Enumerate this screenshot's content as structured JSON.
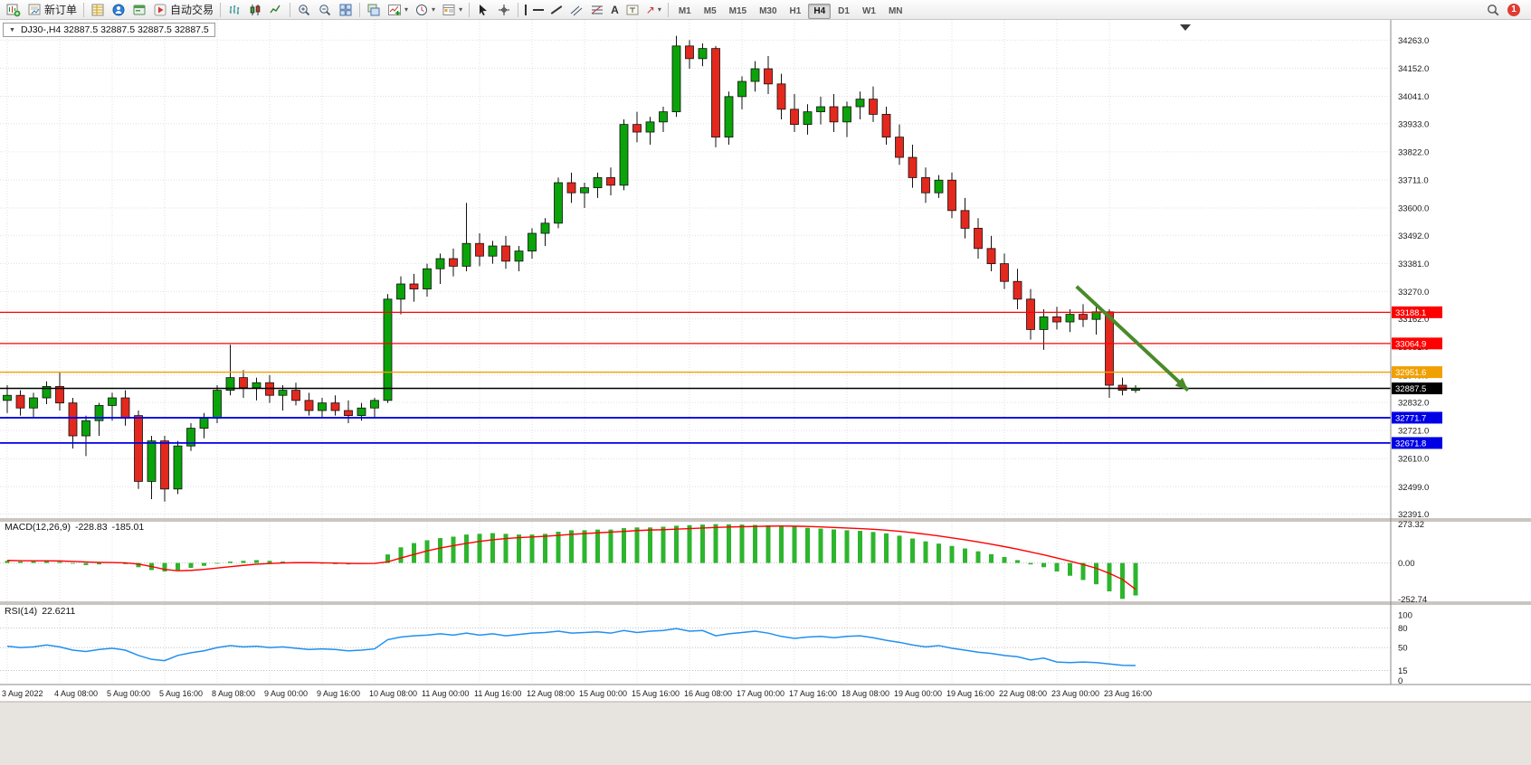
{
  "icons": {
    "caret": "▾",
    "caret_down": "▼",
    "text_tool": "A",
    "arrow_tool": "↗"
  },
  "toolbar": {
    "new_order_label": "新订单",
    "autotrading_label": "自动交易",
    "timeframes": [
      "M1",
      "M5",
      "M15",
      "M30",
      "H1",
      "H4",
      "D1",
      "W1",
      "MN"
    ],
    "active_timeframe": "H4",
    "notification_badge": "1"
  },
  "chart": {
    "symbol_ohlc_label": "DJ30-,H4 32887.5 32887.5 32887.5 32887.5",
    "levels": [
      {
        "price": 33188.1,
        "label": "33188.1",
        "color": "#ff0000"
      },
      {
        "price": 33064.9,
        "label": "33064.9",
        "color": "#ff0000"
      },
      {
        "price": 32951.6,
        "label": "32951.6",
        "color": "#f0a000"
      },
      {
        "price": 32887.5,
        "label": "32887.5",
        "color": "#000000",
        "is_price": true
      },
      {
        "price": 32771.7,
        "label": "32771.7",
        "color": "#0000e6"
      },
      {
        "price": 32671.8,
        "label": "32671.8",
        "color": "#0000e6"
      }
    ],
    "trend_arrow": {
      "color": "#4a8a2a",
      "from": {
        "index": 81.5,
        "price": 33290
      },
      "to": {
        "index": 90,
        "price": 32880
      }
    }
  },
  "macd_panel": {
    "label": "MACD(12,26,9)",
    "value_main": "-228.83",
    "value_signal": "-185.01"
  },
  "rsi_panel": {
    "label": "RSI(14)",
    "value": "22.6211"
  },
  "chart_data": [
    {
      "type": "candlestick",
      "symbol": "DJ30-",
      "timeframe": "H4",
      "up_color": "#0aa30a",
      "down_color": "#e3281e",
      "ylim": [
        32391,
        34263
      ],
      "price_tick_labels": [
        "34263.0",
        "34152.0",
        "34041.0",
        "33933.0",
        "33822.0",
        "33711.0",
        "33600.0",
        "33492.0",
        "33381.0",
        "33270.0",
        "33162.0",
        "33051.0",
        "32940.0",
        "32832.0",
        "32721.0",
        "32610.0",
        "32499.0",
        "32391.0"
      ],
      "time_labels": [
        "3 Aug 2022",
        "4 Aug 08:00",
        "5 Aug 00:00",
        "5 Aug 16:00",
        "8 Aug 08:00",
        "9 Aug 00:00",
        "9 Aug 16:00",
        "10 Aug 08:00",
        "11 Aug 00:00",
        "11 Aug 16:00",
        "12 Aug 08:00",
        "15 Aug 00:00",
        "15 Aug 16:00",
        "16 Aug 08:00",
        "17 Aug 00:00",
        "17 Aug 16:00",
        "18 Aug 08:00",
        "19 Aug 00:00",
        "19 Aug 16:00",
        "22 Aug 08:00",
        "23 Aug 00:00",
        "23 Aug 16:00"
      ],
      "label_every_n_candles": 4,
      "ohlc": [
        [
          32840,
          32900,
          32790,
          32860
        ],
        [
          32860,
          32880,
          32780,
          32810
        ],
        [
          32810,
          32870,
          32770,
          32850
        ],
        [
          32850,
          32915,
          32825,
          32895
        ],
        [
          32895,
          32950,
          32800,
          32830
        ],
        [
          32830,
          32850,
          32650,
          32700
        ],
        [
          32700,
          32780,
          32620,
          32760
        ],
        [
          32760,
          32830,
          32700,
          32820
        ],
        [
          32820,
          32870,
          32760,
          32850
        ],
        [
          32850,
          32880,
          32740,
          32770
        ],
        [
          32780,
          32800,
          32490,
          32520
        ],
        [
          32520,
          32700,
          32450,
          32680
        ],
        [
          32680,
          32700,
          32440,
          32490
        ],
        [
          32490,
          32680,
          32470,
          32660
        ],
        [
          32660,
          32750,
          32640,
          32730
        ],
        [
          32730,
          32790,
          32690,
          32770
        ],
        [
          32770,
          32900,
          32750,
          32880
        ],
        [
          32880,
          33060,
          32860,
          32930
        ],
        [
          32930,
          32960,
          32850,
          32890
        ],
        [
          32890,
          32930,
          32840,
          32910
        ],
        [
          32910,
          32940,
          32830,
          32860
        ],
        [
          32860,
          32900,
          32800,
          32880
        ],
        [
          32880,
          32910,
          32820,
          32840
        ],
        [
          32840,
          32870,
          32780,
          32800
        ],
        [
          32800,
          32850,
          32770,
          32830
        ],
        [
          32830,
          32860,
          32780,
          32800
        ],
        [
          32800,
          32840,
          32750,
          32780
        ],
        [
          32780,
          32830,
          32760,
          32810
        ],
        [
          32810,
          32850,
          32770,
          32840
        ],
        [
          32840,
          33260,
          32830,
          33240
        ],
        [
          33240,
          33330,
          33180,
          33300
        ],
        [
          33300,
          33340,
          33230,
          33280
        ],
        [
          33280,
          33380,
          33250,
          33360
        ],
        [
          33360,
          33420,
          33300,
          33400
        ],
        [
          33400,
          33440,
          33330,
          33370
        ],
        [
          33370,
          33620,
          33350,
          33460
        ],
        [
          33460,
          33500,
          33370,
          33410
        ],
        [
          33410,
          33470,
          33380,
          33450
        ],
        [
          33450,
          33490,
          33360,
          33390
        ],
        [
          33390,
          33450,
          33350,
          33430
        ],
        [
          33430,
          33520,
          33400,
          33500
        ],
        [
          33500,
          33560,
          33450,
          33540
        ],
        [
          33540,
          33720,
          33520,
          33700
        ],
        [
          33700,
          33740,
          33620,
          33660
        ],
        [
          33660,
          33700,
          33600,
          33680
        ],
        [
          33680,
          33740,
          33640,
          33720
        ],
        [
          33720,
          33760,
          33650,
          33690
        ],
        [
          33690,
          33950,
          33670,
          33930
        ],
        [
          33930,
          33980,
          33860,
          33900
        ],
        [
          33900,
          33960,
          33850,
          33940
        ],
        [
          33940,
          34000,
          33900,
          33980
        ],
        [
          33980,
          34280,
          33960,
          34240
        ],
        [
          34240,
          34263,
          34150,
          34190
        ],
        [
          34190,
          34250,
          34160,
          34230
        ],
        [
          34230,
          34240,
          33840,
          33880
        ],
        [
          33880,
          34060,
          33850,
          34040
        ],
        [
          34040,
          34120,
          33990,
          34100
        ],
        [
          34100,
          34180,
          34060,
          34150
        ],
        [
          34150,
          34200,
          34050,
          34090
        ],
        [
          34090,
          34130,
          33950,
          33990
        ],
        [
          33990,
          34050,
          33900,
          33930
        ],
        [
          33930,
          34010,
          33890,
          33980
        ],
        [
          33980,
          34040,
          33930,
          34000
        ],
        [
          34000,
          34050,
          33900,
          33940
        ],
        [
          33940,
          34020,
          33880,
          34000
        ],
        [
          34000,
          34060,
          33950,
          34030
        ],
        [
          34030,
          34080,
          33940,
          33970
        ],
        [
          33970,
          34000,
          33850,
          33880
        ],
        [
          33880,
          33930,
          33770,
          33800
        ],
        [
          33800,
          33850,
          33680,
          33720
        ],
        [
          33720,
          33760,
          33620,
          33660
        ],
        [
          33660,
          33730,
          33640,
          33710
        ],
        [
          33710,
          33740,
          33560,
          33590
        ],
        [
          33590,
          33640,
          33480,
          33520
        ],
        [
          33520,
          33560,
          33400,
          33440
        ],
        [
          33440,
          33490,
          33350,
          33380
        ],
        [
          33380,
          33420,
          33280,
          33310
        ],
        [
          33310,
          33360,
          33200,
          33240
        ],
        [
          33240,
          33280,
          33080,
          33120
        ],
        [
          33120,
          33200,
          33040,
          33170
        ],
        [
          33170,
          33210,
          33120,
          33150
        ],
        [
          33150,
          33200,
          33110,
          33180
        ],
        [
          33180,
          33220,
          33130,
          33160
        ],
        [
          33160,
          33210,
          33100,
          33190
        ],
        [
          33190,
          33200,
          32850,
          32900
        ],
        [
          32900,
          32930,
          32860,
          32880
        ],
        [
          32880,
          32900,
          32870,
          32887.5
        ]
      ]
    },
    {
      "type": "bar",
      "name": "MACD(12,26,9)",
      "ticks": [
        "273.32",
        "0.00",
        "-252.74"
      ],
      "ylim": [
        -252.74,
        273.32
      ],
      "current_values": [
        -228.83,
        -185.01
      ],
      "histogram": [
        15,
        10,
        12,
        18,
        8,
        -5,
        -15,
        -10,
        0,
        -8,
        -30,
        -50,
        -60,
        -50,
        -35,
        -20,
        -5,
        10,
        15,
        20,
        15,
        10,
        5,
        0,
        -5,
        -8,
        -10,
        -5,
        0,
        60,
        110,
        140,
        160,
        175,
        185,
        200,
        205,
        210,
        205,
        200,
        200,
        205,
        220,
        230,
        230,
        235,
        235,
        245,
        250,
        250,
        255,
        262,
        266,
        270,
        273.32,
        272,
        270,
        268,
        265,
        262,
        255,
        248,
        242,
        236,
        230,
        226,
        218,
        208,
        192,
        172,
        152,
        136,
        120,
        102,
        82,
        62,
        42,
        20,
        -10,
        -30,
        -60,
        -90,
        -120,
        -150,
        -200,
        -252.74,
        -228.83
      ],
      "signal_line": [
        18,
        16,
        15,
        15,
        14,
        11,
        7,
        4,
        3,
        1,
        -8,
        -25,
        -45,
        -55,
        -52,
        -45,
        -36,
        -26,
        -17,
        -9,
        -4,
        0,
        2,
        2,
        1,
        -1,
        -3,
        -4,
        -3,
        8,
        35,
        60,
        85,
        105,
        122,
        138,
        152,
        163,
        172,
        178,
        183,
        188,
        194,
        201,
        207,
        212,
        217,
        222,
        228,
        232,
        234,
        238,
        242,
        246,
        250,
        253,
        255,
        257,
        259,
        260,
        259,
        257,
        254,
        250,
        246,
        242,
        237,
        231,
        223,
        213,
        202,
        190,
        177,
        163,
        148,
        132,
        115,
        97,
        77,
        57,
        35,
        13,
        -11,
        -37,
        -73,
        -116,
        -185.01
      ]
    },
    {
      "type": "line",
      "name": "RSI(14)",
      "ticks": [
        "100",
        "80",
        "50",
        "15",
        "0"
      ],
      "ylim": [
        0,
        100
      ],
      "levels": [
        80,
        50,
        15
      ],
      "current_value": 22.6211,
      "values": [
        52,
        50,
        51,
        54,
        51,
        46,
        44,
        47,
        49,
        46,
        38,
        32,
        30,
        38,
        42,
        45,
        50,
        53,
        51,
        52,
        50,
        51,
        49,
        47,
        48,
        47,
        45,
        46,
        48,
        62,
        66,
        68,
        69,
        71,
        69,
        72,
        69,
        71,
        68,
        70,
        72,
        73,
        75,
        72,
        73,
        74,
        72,
        76,
        73,
        75,
        76,
        79,
        75,
        76,
        68,
        71,
        73,
        75,
        72,
        67,
        64,
        66,
        67,
        65,
        67,
        68,
        65,
        61,
        58,
        54,
        51,
        53,
        49,
        46,
        43,
        41,
        38,
        36,
        31,
        34,
        28,
        27,
        28,
        27,
        25,
        23,
        22.6211
      ]
    }
  ]
}
